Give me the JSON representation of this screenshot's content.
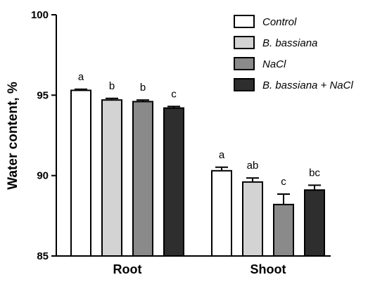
{
  "chart_data": {
    "type": "bar",
    "ylabel": "Water content, %",
    "xlabel": "",
    "ylim": [
      85,
      100
    ],
    "yticks": [
      85,
      90,
      95,
      100
    ],
    "categories": [
      "Root",
      "Shoot"
    ],
    "legend_position": "top-right",
    "grid": false,
    "series": [
      {
        "name": "Control",
        "color": "#ffffff",
        "values": [
          95.3,
          90.3
        ],
        "errors": [
          0.07,
          0.22
        ],
        "letters": [
          "a",
          "a"
        ]
      },
      {
        "name": "B. bassiana",
        "color": "#d3d3d3",
        "values": [
          94.7,
          89.6
        ],
        "errors": [
          0.1,
          0.25
        ],
        "letters": [
          "b",
          "ab"
        ]
      },
      {
        "name": "NaCl",
        "color": "#8a8a8a",
        "values": [
          94.6,
          88.2
        ],
        "errors": [
          0.1,
          0.65
        ],
        "letters": [
          "b",
          "c"
        ]
      },
      {
        "name": "B. bassiana + NaCl",
        "color": "#2e2e2e",
        "values": [
          94.2,
          89.1
        ],
        "errors": [
          0.1,
          0.3
        ],
        "letters": [
          "c",
          "bc"
        ]
      }
    ]
  }
}
